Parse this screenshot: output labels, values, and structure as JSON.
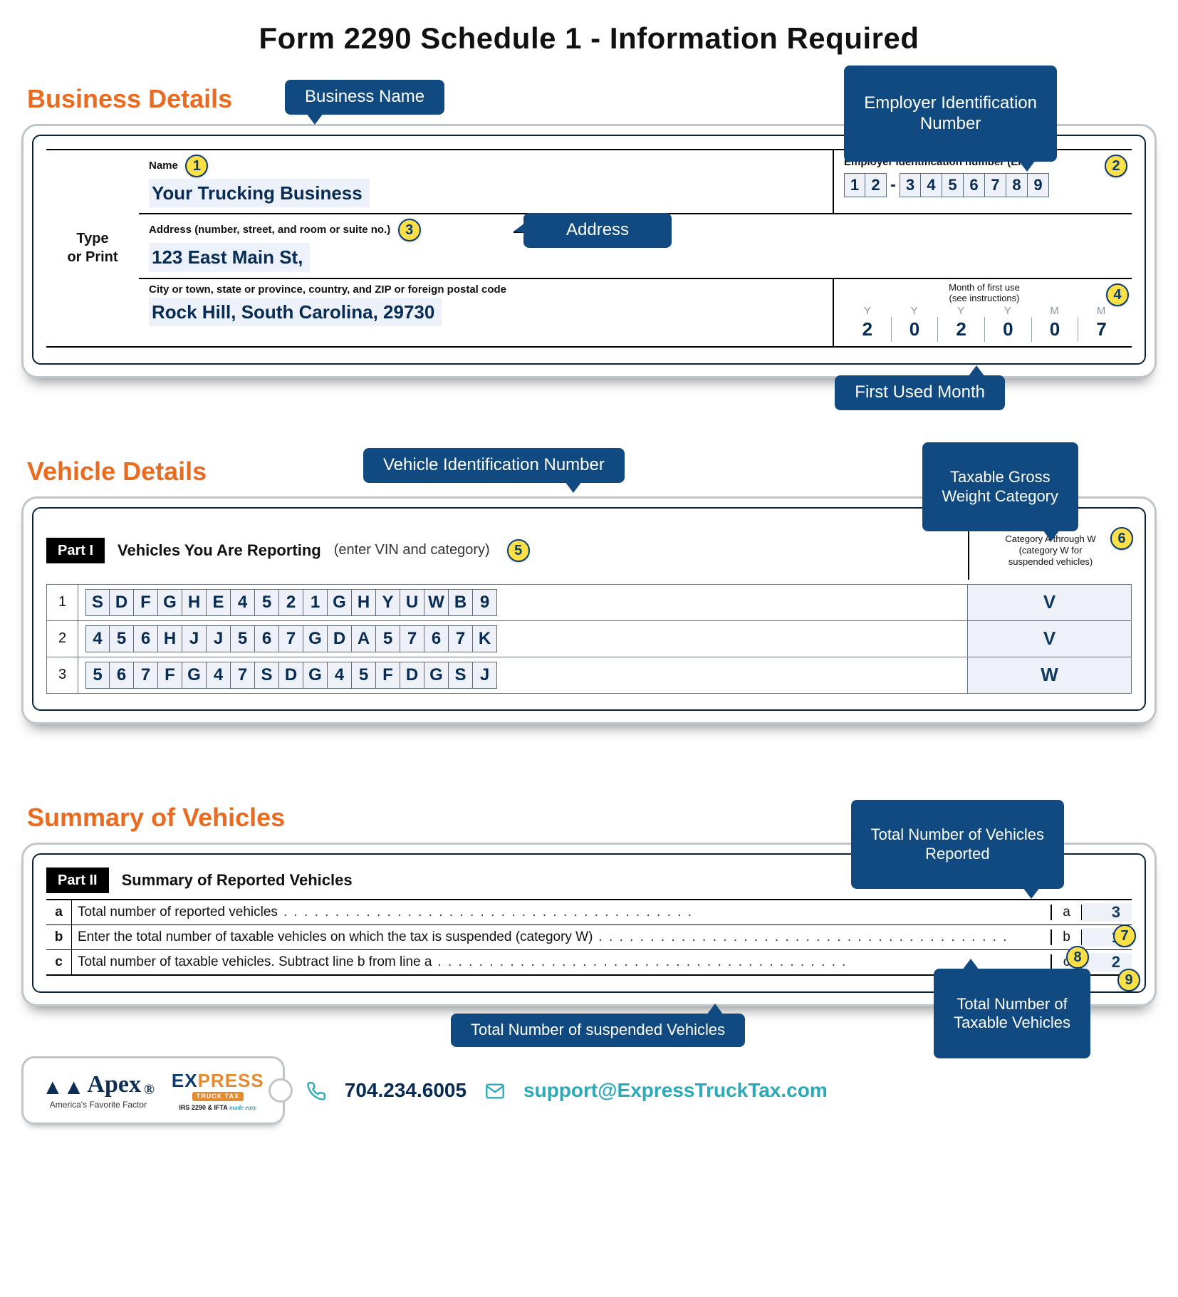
{
  "page_title": "Form 2290 Schedule 1 - Information Required",
  "sections": {
    "business": {
      "heading": "Business Details",
      "callouts": {
        "name": "Business Name",
        "ein": "Employer Identification\nNumber",
        "address": "Address",
        "fum": "First Used Month"
      },
      "type_or_print": "Type\nor Print",
      "labels": {
        "name": "Name",
        "ein": "Employer identification number (EIN)",
        "address": "Address (number, street, and room or suite no.)",
        "city": "City or town, state or province, country, and ZIP or foreign postal code",
        "mofu": "Month of first use\n(see instructions)"
      },
      "values": {
        "business_name": "Your Trucking Business",
        "address_line": "123 East Main St,",
        "city_line": "Rock Hill, South Carolina, 29730",
        "ein_digits": [
          "1",
          "2",
          "3",
          "4",
          "5",
          "6",
          "7",
          "8",
          "9"
        ],
        "mofu_heads": [
          "Y",
          "Y",
          "Y",
          "Y",
          "M",
          "M"
        ],
        "mofu_digits": [
          "2",
          "0",
          "2",
          "0",
          "0",
          "7"
        ]
      }
    },
    "vehicles": {
      "heading": "Vehicle Details",
      "callouts": {
        "vin": "Vehicle Identification Number",
        "cat": "Taxable Gross\nWeight Category"
      },
      "part_tag": "Part I",
      "title": "Vehicles You Are Reporting",
      "note": "(enter VIN and category)",
      "cat_header": "Category A through W\n(category W for\nsuspended vehicles)",
      "rows": [
        {
          "n": "1",
          "vin": [
            "S",
            "D",
            "F",
            "G",
            "H",
            "E",
            "4",
            "5",
            "2",
            "1",
            "G",
            "H",
            "Y",
            "U",
            "W",
            "B",
            "9"
          ],
          "cat": "V"
        },
        {
          "n": "2",
          "vin": [
            "4",
            "5",
            "6",
            "H",
            "J",
            "J",
            "5",
            "6",
            "7",
            "G",
            "D",
            "A",
            "5",
            "7",
            "6",
            "7",
            "K"
          ],
          "cat": "V"
        },
        {
          "n": "3",
          "vin": [
            "5",
            "6",
            "7",
            "F",
            "G",
            "4",
            "7",
            "S",
            "D",
            "G",
            "4",
            "5",
            "F",
            "D",
            "G",
            "S",
            "J"
          ],
          "cat": "W"
        }
      ]
    },
    "summary": {
      "heading": "Summary of Vehicles",
      "callouts": {
        "total": "Total Number of Vehicles\nReported",
        "susp": "Total Number of suspended Vehicles",
        "tax": "Total Number of\nTaxable Vehicles"
      },
      "part_tag": "Part II",
      "title": "Summary of Reported Vehicles",
      "rows": [
        {
          "k": "a",
          "label": "Total number of reported vehicles",
          "value": "3"
        },
        {
          "k": "b",
          "label": "Enter the total number of taxable vehicles on which the tax is suspended (category W)",
          "value": "1"
        },
        {
          "k": "c",
          "label": "Total number of taxable vehicles. Subtract line b from line a",
          "value": "2"
        }
      ]
    }
  },
  "badges": [
    "1",
    "2",
    "3",
    "4",
    "5",
    "6",
    "7",
    "8",
    "9"
  ],
  "footer": {
    "apex_name": "Apex",
    "apex_tagline": "America's Favorite Factor",
    "ett_top": "EXPRESS",
    "ett_bar": "TRUCK TAX",
    "ett_sub_left": "IRS 2290 & IFTA",
    "ett_sub_right": "made easy",
    "phone": "704.234.6005",
    "email": "support@ExpressTruckTax.com"
  },
  "colors": {
    "navy": "#114a80",
    "orange": "#ea6a20",
    "yellow": "#fde047",
    "teal": "#2aa9b8"
  }
}
